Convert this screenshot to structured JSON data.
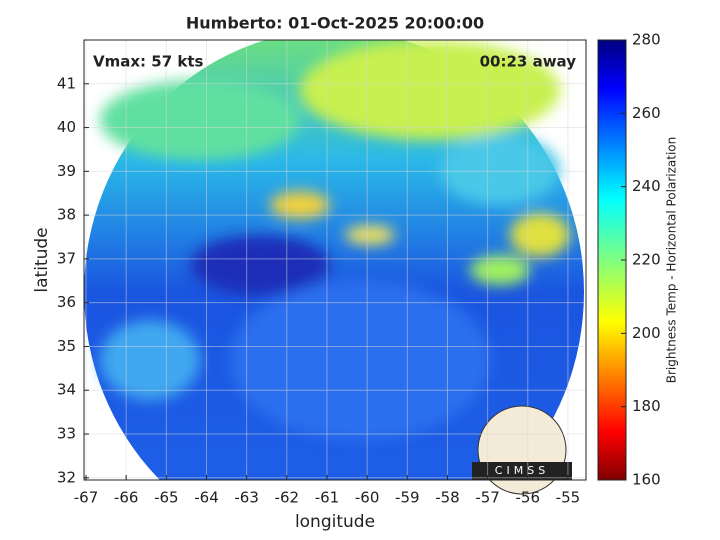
{
  "chart_data": {
    "type": "image",
    "title": "Humberto: 01-Oct-2025 20:00:00",
    "annotations": [
      "Vmax: 57 kts",
      "00:23 away"
    ],
    "xlabel": "longitude",
    "ylabel": "latitude",
    "xlim": [
      -67.05,
      -54.55
    ],
    "xticks": [
      -67,
      -66,
      -65,
      -64,
      -63,
      -62,
      -61,
      -60,
      -59,
      -58,
      -57,
      -56,
      -55
    ],
    "ylim": [
      31.95,
      42
    ],
    "yticks": [
      32,
      33,
      34,
      35,
      36,
      37,
      38,
      39,
      40,
      41
    ],
    "grid": true,
    "colorbar": {
      "label": "Brightness Temp - Horizontal Polarization",
      "clim": [
        160,
        280
      ],
      "ticks": [
        160,
        180,
        200,
        220,
        240,
        260,
        280
      ]
    },
    "logo_text": "CIMSS"
  }
}
